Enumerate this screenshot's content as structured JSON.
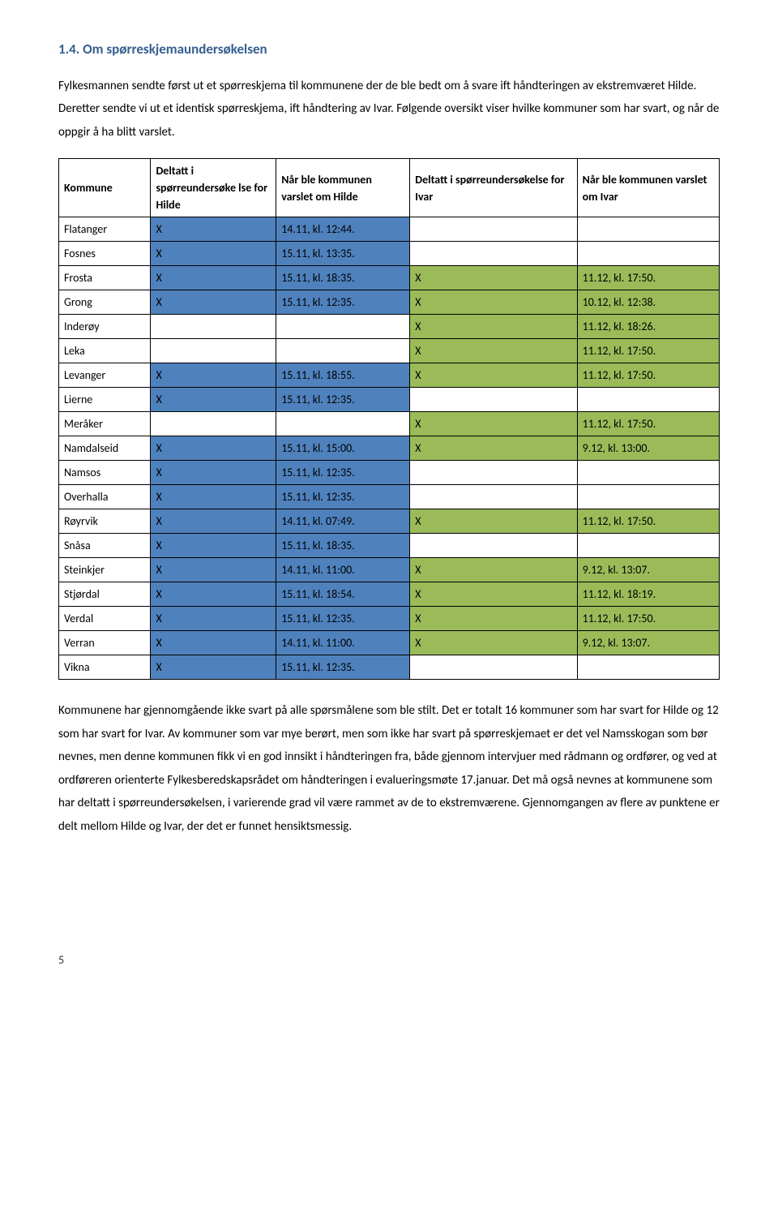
{
  "heading": "1.4. Om spørreskjemaundersøkelsen",
  "intro": "Fylkesmannen sendte først ut et spørreskjema til kommunene der de ble bedt om å svare ift håndteringen av ekstremværet Hilde. Deretter sendte vi ut et identisk spørreskjema, ift håndtering av Ivar. Følgende oversikt viser hvilke kommuner som har svart, og når de oppgir å ha blitt varslet.",
  "table": {
    "headers": {
      "kommune": "Kommune",
      "deltatt_hilde": "Deltatt i spørreundersøke lse for Hilde",
      "varslet_hilde": "Når ble kommunen varslet om Hilde",
      "deltatt_ivar": "Deltatt i spørreundersøkelse for Ivar",
      "varslet_ivar": "Når ble kommunen varslet om Ivar"
    },
    "colors": {
      "blue": "#4f81bd",
      "green": "#9bbb59"
    },
    "rows": [
      {
        "kommune": "Flatanger",
        "dh": "X",
        "vh": "14.11, kl. 12:44.",
        "di": "",
        "vi": ""
      },
      {
        "kommune": "Fosnes",
        "dh": "X",
        "vh": "15.11, kl. 13:35.",
        "di": "",
        "vi": ""
      },
      {
        "kommune": "Frosta",
        "dh": "X",
        "vh": "15.11, kl. 18:35.",
        "di": "X",
        "vi": "11.12, kl. 17:50."
      },
      {
        "kommune": "Grong",
        "dh": "X",
        "vh": "15.11, kl. 12:35.",
        "di": "X",
        "vi": "10.12, kl. 12:38."
      },
      {
        "kommune": "Inderøy",
        "dh": "",
        "vh": "",
        "di": "X",
        "vi": "11.12, kl. 18:26."
      },
      {
        "kommune": "Leka",
        "dh": "",
        "vh": "",
        "di": "X",
        "vi": "11.12, kl. 17:50."
      },
      {
        "kommune": "Levanger",
        "dh": "X",
        "vh": "15.11, kl. 18:55.",
        "di": "X",
        "vi": "11.12, kl. 17:50."
      },
      {
        "kommune": "Lierne",
        "dh": "X",
        "vh": "15.11, kl. 12:35.",
        "di": "",
        "vi": ""
      },
      {
        "kommune": "Meråker",
        "dh": "",
        "vh": "",
        "di": "X",
        "vi": "11.12, kl. 17:50."
      },
      {
        "kommune": "Namdalseid",
        "dh": "X",
        "vh": "15.11, kl. 15:00.",
        "di": "X",
        "vi": "9.12, kl. 13:00."
      },
      {
        "kommune": "Namsos",
        "dh": "X",
        "vh": "15.11, kl. 12:35.",
        "di": "",
        "vi": ""
      },
      {
        "kommune": "Overhalla",
        "dh": "X",
        "vh": "15.11, kl. 12:35.",
        "di": "",
        "vi": ""
      },
      {
        "kommune": "Røyrvik",
        "dh": "X",
        "vh": "14.11, kl. 07:49.",
        "di": "X",
        "vi": "11.12, kl. 17:50."
      },
      {
        "kommune": "Snåsa",
        "dh": "X",
        "vh": "15.11, kl. 18:35.",
        "di": "",
        "vi": ""
      },
      {
        "kommune": "Steinkjer",
        "dh": "X",
        "vh": "14.11, kl. 11:00.",
        "di": "X",
        "vi": "9.12, kl. 13:07."
      },
      {
        "kommune": "Stjørdal",
        "dh": "X",
        "vh": "15.11, kl. 18:54.",
        "di": "X",
        "vi": "11.12, kl. 18:19."
      },
      {
        "kommune": "Verdal",
        "dh": "X",
        "vh": "15.11, kl. 12:35.",
        "di": "X",
        "vi": "11.12, kl. 17:50."
      },
      {
        "kommune": "Verran",
        "dh": "X",
        "vh": "14.11, kl. 11:00.",
        "di": "X",
        "vi": "9.12, kl. 13:07."
      },
      {
        "kommune": "Vikna",
        "dh": "X",
        "vh": "15.11, kl. 12:35.",
        "di": "",
        "vi": ""
      }
    ]
  },
  "closing": "Kommunene har gjennomgående ikke svart på alle spørsmålene som ble stilt. Det er totalt 16 kommuner som har svart for Hilde og 12 som har svart for Ivar. Av kommuner som var mye berørt, men som ikke har svart på spørreskjemaet er det vel Namsskogan som bør nevnes, men denne kommunen fikk vi en god innsikt i håndteringen fra, både gjennom intervjuer med rådmann og ordfører, og ved at ordføreren orienterte Fylkesberedskapsrådet om håndteringen i evalueringsmøte 17.januar. Det må også nevnes at kommunene som har deltatt i spørreundersøkelsen, i varierende grad vil være rammet av de to ekstremværene. Gjennomgangen av flere av punktene er delt mellom Hilde og Ivar, der det er funnet hensiktsmessig.",
  "page_number": "5"
}
